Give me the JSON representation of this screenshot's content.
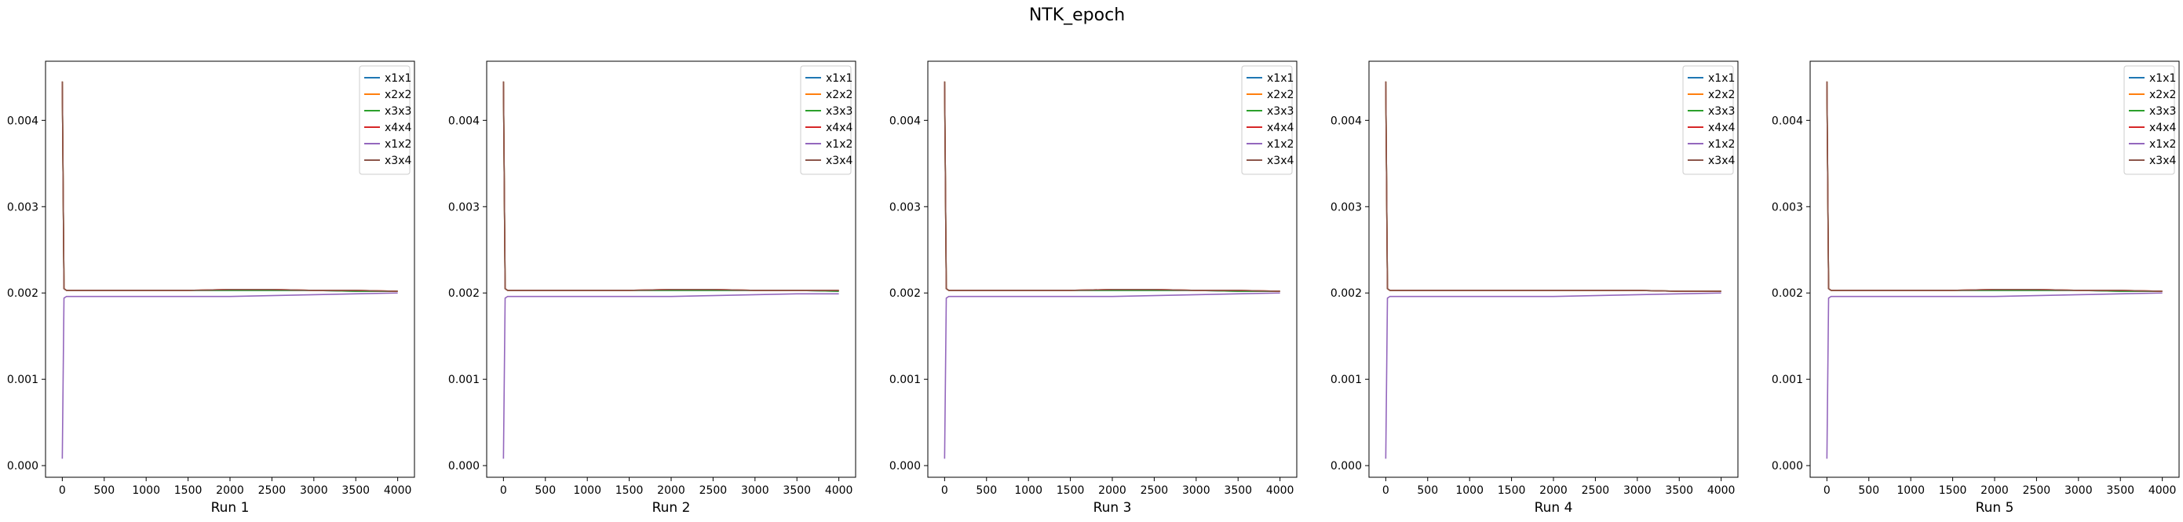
{
  "figure": {
    "suptitle": "NTK_epoch"
  },
  "colors": {
    "x1x1": "#1f77b4",
    "x2x2": "#ff7f0e",
    "x3x3": "#2ca02c",
    "x4x4": "#d62728",
    "x1x2": "#9467bd",
    "x3x4": "#8c564b"
  },
  "chart_data": [
    {
      "type": "line",
      "xlabel": "Run 1",
      "ylabel": "",
      "xlim": [
        -200,
        4200
      ],
      "ylim": [
        -0.000135,
        0.004685
      ],
      "xticks": [
        0,
        500,
        1000,
        1500,
        2000,
        2500,
        3000,
        3500,
        4000
      ],
      "yticks": [
        0.0,
        0.001,
        0.002,
        0.003,
        0.004
      ],
      "ytick_labels": [
        "0.000",
        "0.001",
        "0.002",
        "0.003",
        "0.004"
      ],
      "legend": "upper right",
      "x": [
        0,
        20,
        50,
        100,
        500,
        1000,
        1500,
        2000,
        2500,
        3000,
        3500,
        4000
      ],
      "series": [
        {
          "name": "x1x1",
          "values": [
            0.00445,
            0.00205,
            0.00203,
            0.00203,
            0.00203,
            0.00203,
            0.00203,
            0.00203,
            0.00203,
            0.00203,
            0.00202,
            0.00202
          ]
        },
        {
          "name": "x2x2",
          "values": [
            0.00445,
            0.00205,
            0.00203,
            0.00203,
            0.00203,
            0.00203,
            0.00203,
            0.00204,
            0.00204,
            0.00203,
            0.00203,
            0.00202
          ]
        },
        {
          "name": "x3x3",
          "values": [
            0.00445,
            0.00205,
            0.00203,
            0.00203,
            0.00203,
            0.00203,
            0.00203,
            0.00203,
            0.00203,
            0.00203,
            0.00202,
            0.00202
          ]
        },
        {
          "name": "x4x4",
          "values": [
            0.00445,
            0.00205,
            0.00203,
            0.00203,
            0.00203,
            0.00203,
            0.00203,
            0.00204,
            0.00204,
            0.00203,
            0.00203,
            0.00202
          ]
        },
        {
          "name": "x1x2",
          "values": [
            8e-05,
            0.00194,
            0.00196,
            0.00196,
            0.00196,
            0.00196,
            0.00196,
            0.00196,
            0.00197,
            0.00198,
            0.00199,
            0.002
          ]
        },
        {
          "name": "x3x4",
          "values": [
            0.00445,
            0.00205,
            0.00203,
            0.00203,
            0.00203,
            0.00203,
            0.00203,
            0.00204,
            0.00204,
            0.00203,
            0.00203,
            0.00202
          ]
        }
      ]
    },
    {
      "type": "line",
      "xlabel": "Run 2",
      "ylabel": "",
      "xlim": [
        -200,
        4200
      ],
      "ylim": [
        -0.000135,
        0.004685
      ],
      "xticks": [
        0,
        500,
        1000,
        1500,
        2000,
        2500,
        3000,
        3500,
        4000
      ],
      "yticks": [
        0.0,
        0.001,
        0.002,
        0.003,
        0.004
      ],
      "ytick_labels": [
        "0.000",
        "0.001",
        "0.002",
        "0.003",
        "0.004"
      ],
      "legend": "upper right",
      "x": [
        0,
        20,
        50,
        100,
        500,
        1000,
        1500,
        2000,
        2500,
        3000,
        3500,
        4000
      ],
      "series": [
        {
          "name": "x1x1",
          "values": [
            0.00445,
            0.00205,
            0.00203,
            0.00203,
            0.00203,
            0.00203,
            0.00203,
            0.00203,
            0.00203,
            0.00203,
            0.00203,
            0.00202
          ]
        },
        {
          "name": "x2x2",
          "values": [
            0.00445,
            0.00205,
            0.00203,
            0.00203,
            0.00203,
            0.00203,
            0.00203,
            0.00204,
            0.00204,
            0.00203,
            0.00203,
            0.00203
          ]
        },
        {
          "name": "x3x3",
          "values": [
            0.00445,
            0.00205,
            0.00203,
            0.00203,
            0.00203,
            0.00203,
            0.00203,
            0.00203,
            0.00203,
            0.00203,
            0.00203,
            0.00202
          ]
        },
        {
          "name": "x4x4",
          "values": [
            0.00445,
            0.00205,
            0.00203,
            0.00203,
            0.00203,
            0.00203,
            0.00203,
            0.00204,
            0.00204,
            0.00203,
            0.00203,
            0.00203
          ]
        },
        {
          "name": "x1x2",
          "values": [
            8e-05,
            0.00194,
            0.00196,
            0.00196,
            0.00196,
            0.00196,
            0.00196,
            0.00196,
            0.00197,
            0.00198,
            0.00199,
            0.00199
          ]
        },
        {
          "name": "x3x4",
          "values": [
            0.00445,
            0.00205,
            0.00203,
            0.00203,
            0.00203,
            0.00203,
            0.00203,
            0.00204,
            0.00204,
            0.00203,
            0.00203,
            0.00203
          ]
        }
      ]
    },
    {
      "type": "line",
      "xlabel": "Run 3",
      "ylabel": "",
      "xlim": [
        -200,
        4200
      ],
      "ylim": [
        -0.000135,
        0.004685
      ],
      "xticks": [
        0,
        500,
        1000,
        1500,
        2000,
        2500,
        3000,
        3500,
        4000
      ],
      "yticks": [
        0.0,
        0.001,
        0.002,
        0.003,
        0.004
      ],
      "ytick_labels": [
        "0.000",
        "0.001",
        "0.002",
        "0.003",
        "0.004"
      ],
      "legend": "upper right",
      "x": [
        0,
        20,
        50,
        100,
        500,
        1000,
        1500,
        2000,
        2500,
        3000,
        3500,
        4000
      ],
      "series": [
        {
          "name": "x1x1",
          "values": [
            0.00445,
            0.00205,
            0.00203,
            0.00203,
            0.00203,
            0.00203,
            0.00203,
            0.00203,
            0.00203,
            0.00203,
            0.00202,
            0.00202
          ]
        },
        {
          "name": "x2x2",
          "values": [
            0.00445,
            0.00205,
            0.00203,
            0.00203,
            0.00203,
            0.00203,
            0.00203,
            0.00204,
            0.00204,
            0.00203,
            0.00203,
            0.00202
          ]
        },
        {
          "name": "x3x3",
          "values": [
            0.00445,
            0.00205,
            0.00203,
            0.00203,
            0.00203,
            0.00203,
            0.00203,
            0.00203,
            0.00203,
            0.00203,
            0.00202,
            0.00202
          ]
        },
        {
          "name": "x4x4",
          "values": [
            0.00445,
            0.00205,
            0.00203,
            0.00203,
            0.00203,
            0.00203,
            0.00203,
            0.00204,
            0.00204,
            0.00203,
            0.00203,
            0.00202
          ]
        },
        {
          "name": "x1x2",
          "values": [
            8e-05,
            0.00194,
            0.00196,
            0.00196,
            0.00196,
            0.00196,
            0.00196,
            0.00196,
            0.00197,
            0.00198,
            0.00199,
            0.002
          ]
        },
        {
          "name": "x3x4",
          "values": [
            0.00445,
            0.00205,
            0.00203,
            0.00203,
            0.00203,
            0.00203,
            0.00203,
            0.00204,
            0.00204,
            0.00203,
            0.00203,
            0.00202
          ]
        }
      ]
    },
    {
      "type": "line",
      "xlabel": "Run 4",
      "ylabel": "",
      "xlim": [
        -200,
        4200
      ],
      "ylim": [
        -0.000135,
        0.004685
      ],
      "xticks": [
        0,
        500,
        1000,
        1500,
        2000,
        2500,
        3000,
        3500,
        4000
      ],
      "yticks": [
        0.0,
        0.001,
        0.002,
        0.003,
        0.004
      ],
      "ytick_labels": [
        "0.000",
        "0.001",
        "0.002",
        "0.003",
        "0.004"
      ],
      "legend": "upper right",
      "x": [
        0,
        20,
        50,
        100,
        500,
        1000,
        1500,
        2000,
        2500,
        3000,
        3500,
        4000
      ],
      "series": [
        {
          "name": "x1x1",
          "values": [
            0.00445,
            0.00205,
            0.00203,
            0.00203,
            0.00203,
            0.00203,
            0.00203,
            0.00203,
            0.00203,
            0.00203,
            0.00202,
            0.00202
          ]
        },
        {
          "name": "x2x2",
          "values": [
            0.00445,
            0.00205,
            0.00203,
            0.00203,
            0.00203,
            0.00203,
            0.00203,
            0.00203,
            0.00203,
            0.00203,
            0.00202,
            0.00202
          ]
        },
        {
          "name": "x3x3",
          "values": [
            0.00445,
            0.00205,
            0.00203,
            0.00203,
            0.00203,
            0.00203,
            0.00203,
            0.00203,
            0.00203,
            0.00203,
            0.00202,
            0.00202
          ]
        },
        {
          "name": "x4x4",
          "values": [
            0.00445,
            0.00205,
            0.00203,
            0.00203,
            0.00203,
            0.00203,
            0.00203,
            0.00203,
            0.00203,
            0.00203,
            0.00202,
            0.00202
          ]
        },
        {
          "name": "x1x2",
          "values": [
            8e-05,
            0.00194,
            0.00196,
            0.00196,
            0.00196,
            0.00196,
            0.00196,
            0.00196,
            0.00197,
            0.00198,
            0.00199,
            0.002
          ]
        },
        {
          "name": "x3x4",
          "values": [
            0.00445,
            0.00205,
            0.00203,
            0.00203,
            0.00203,
            0.00203,
            0.00203,
            0.00203,
            0.00203,
            0.00203,
            0.00202,
            0.00202
          ]
        }
      ]
    },
    {
      "type": "line",
      "xlabel": "Run 5",
      "ylabel": "",
      "xlim": [
        -200,
        4200
      ],
      "ylim": [
        -0.000135,
        0.004685
      ],
      "xticks": [
        0,
        500,
        1000,
        1500,
        2000,
        2500,
        3000,
        3500,
        4000
      ],
      "yticks": [
        0.0,
        0.001,
        0.002,
        0.003,
        0.004
      ],
      "ytick_labels": [
        "0.000",
        "0.001",
        "0.002",
        "0.003",
        "0.004"
      ],
      "legend": "upper right",
      "x": [
        0,
        20,
        50,
        100,
        500,
        1000,
        1500,
        2000,
        2500,
        3000,
        3500,
        4000
      ],
      "series": [
        {
          "name": "x1x1",
          "values": [
            0.00445,
            0.00205,
            0.00203,
            0.00203,
            0.00203,
            0.00203,
            0.00203,
            0.00203,
            0.00203,
            0.00203,
            0.00202,
            0.00202
          ]
        },
        {
          "name": "x2x2",
          "values": [
            0.00445,
            0.00205,
            0.00203,
            0.00203,
            0.00203,
            0.00203,
            0.00203,
            0.00204,
            0.00204,
            0.00203,
            0.00203,
            0.00202
          ]
        },
        {
          "name": "x3x3",
          "values": [
            0.00445,
            0.00205,
            0.00203,
            0.00203,
            0.00203,
            0.00203,
            0.00203,
            0.00203,
            0.00203,
            0.00203,
            0.00202,
            0.00202
          ]
        },
        {
          "name": "x4x4",
          "values": [
            0.00445,
            0.00205,
            0.00203,
            0.00203,
            0.00203,
            0.00203,
            0.00203,
            0.00204,
            0.00204,
            0.00203,
            0.00203,
            0.00202
          ]
        },
        {
          "name": "x1x2",
          "values": [
            8e-05,
            0.00194,
            0.00196,
            0.00196,
            0.00196,
            0.00196,
            0.00196,
            0.00196,
            0.00197,
            0.00198,
            0.00199,
            0.002
          ]
        },
        {
          "name": "x3x4",
          "values": [
            0.00445,
            0.00205,
            0.00203,
            0.00203,
            0.00203,
            0.00203,
            0.00203,
            0.00204,
            0.00204,
            0.00203,
            0.00203,
            0.00202
          ]
        }
      ]
    }
  ]
}
